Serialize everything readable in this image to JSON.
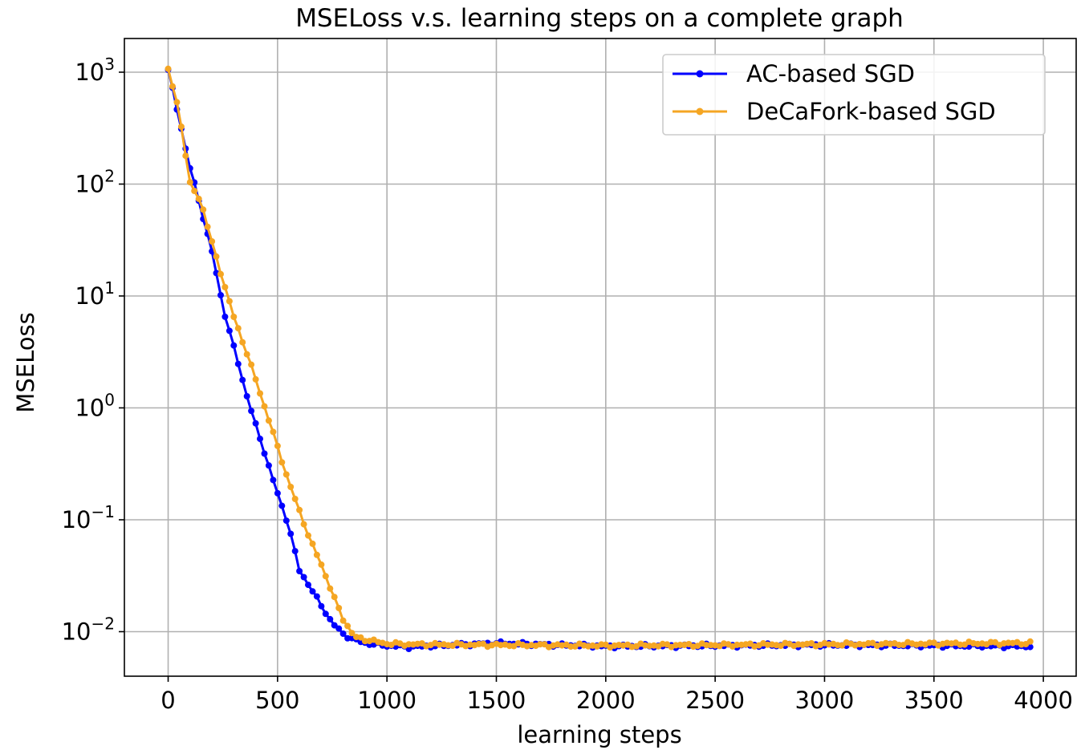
{
  "chart_data": {
    "type": "line",
    "title": "MSELoss v.s. learning steps on a complete graph",
    "xlabel": "learning steps",
    "ylabel": "MSELoss",
    "xlim": [
      -200,
      4150
    ],
    "ylim": [
      0.004,
      2000
    ],
    "yscale": "log",
    "grid": true,
    "legend_position": "top-right",
    "xticks": [
      0,
      500,
      1000,
      1500,
      2000,
      2500,
      3000,
      3500,
      4000
    ],
    "xtick_labels": [
      "0",
      "500",
      "1000",
      "1500",
      "2000",
      "2500",
      "3000",
      "3500",
      "4000"
    ],
    "yticks": [
      {
        "value": 1000,
        "base": "10",
        "exp": "3"
      },
      {
        "value": 100,
        "base": "10",
        "exp": "2"
      },
      {
        "value": 10,
        "base": "10",
        "exp": "1"
      },
      {
        "value": 1,
        "base": "10",
        "exp": "0"
      },
      {
        "value": 0.1,
        "base": "10",
        "exp": "−1"
      },
      {
        "value": 0.01,
        "base": "10",
        "exp": "−2"
      }
    ],
    "series": [
      {
        "name": "AC-based SGD",
        "color": "#0000ff",
        "anchors": [
          [
            0,
            1050
          ],
          [
            100,
            140
          ],
          [
            150,
            60
          ],
          [
            200,
            25
          ],
          [
            250,
            8
          ],
          [
            300,
            3.5
          ],
          [
            350,
            1.5
          ],
          [
            400,
            0.7
          ],
          [
            450,
            0.35
          ],
          [
            500,
            0.17
          ],
          [
            550,
            0.09
          ],
          [
            600,
            0.035
          ],
          [
            650,
            0.025
          ],
          [
            700,
            0.017
          ],
          [
            750,
            0.012
          ],
          [
            800,
            0.0095
          ],
          [
            850,
            0.0085
          ],
          [
            900,
            0.0079
          ],
          [
            1000,
            0.0075
          ],
          [
            1100,
            0.0073
          ],
          [
            1500,
            0.0079
          ],
          [
            2000,
            0.0074
          ],
          [
            3000,
            0.0076
          ],
          [
            3950,
            0.0074
          ]
        ]
      },
      {
        "name": "DeCaFork-based SGD",
        "color": "#f5a623",
        "anchors": [
          [
            0,
            1050
          ],
          [
            50,
            450
          ],
          [
            100,
            100
          ],
          [
            150,
            70
          ],
          [
            200,
            30
          ],
          [
            250,
            14
          ],
          [
            300,
            6.5
          ],
          [
            350,
            3.5
          ],
          [
            400,
            1.8
          ],
          [
            450,
            0.9
          ],
          [
            500,
            0.45
          ],
          [
            550,
            0.22
          ],
          [
            600,
            0.12
          ],
          [
            650,
            0.065
          ],
          [
            700,
            0.04
          ],
          [
            750,
            0.022
          ],
          [
            800,
            0.013
          ],
          [
            850,
            0.009
          ],
          [
            900,
            0.0085
          ],
          [
            1000,
            0.0078
          ],
          [
            1100,
            0.0077
          ],
          [
            2000,
            0.0075
          ],
          [
            3000,
            0.0077
          ],
          [
            3950,
            0.0079
          ]
        ]
      }
    ]
  }
}
